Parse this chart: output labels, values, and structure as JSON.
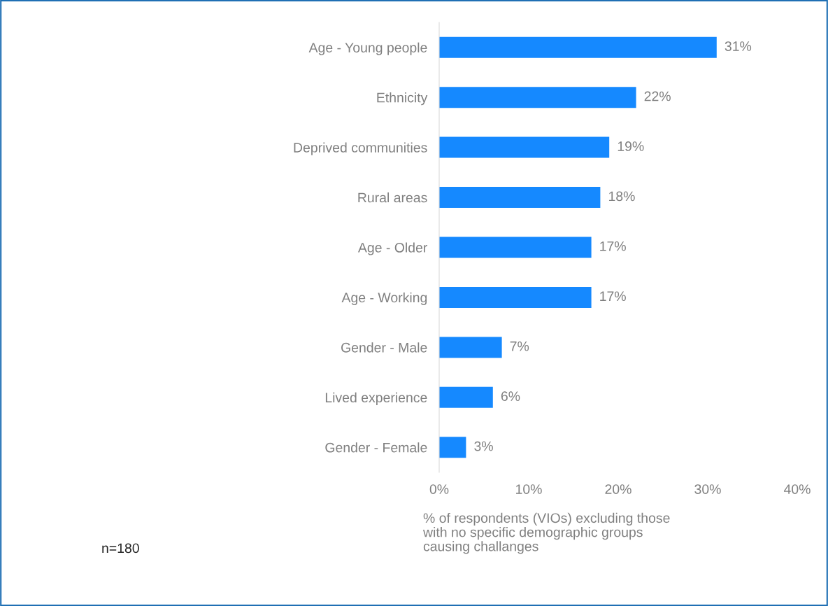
{
  "chart_data": {
    "type": "bar",
    "orientation": "horizontal",
    "categories": [
      "Age - Young people",
      "Ethnicity",
      "Deprived communities",
      "Rural areas",
      "Age - Older",
      "Age - Working",
      "Gender - Male",
      "Lived experience",
      "Gender - Female"
    ],
    "values": [
      31,
      22,
      19,
      18,
      17,
      17,
      7,
      6,
      3
    ],
    "value_labels": [
      "31%",
      "22%",
      "19%",
      "18%",
      "17%",
      "17%",
      "7%",
      "6%",
      "3%"
    ],
    "color": "#1589ff",
    "xlim": [
      0,
      40
    ],
    "xticks": [
      {
        "value": 0,
        "label": "0%"
      },
      {
        "value": 10,
        "label": "10%"
      },
      {
        "value": 20,
        "label": "20%"
      },
      {
        "value": 30,
        "label": "30%"
      },
      {
        "value": 40,
        "label": "40%"
      }
    ],
    "xlabel": "% of respondents (VIOs) excluding those\nwith no specific demographic groups\ncausing challanges",
    "annotations": [
      "n=180"
    ],
    "grid": false,
    "legend": false
  }
}
